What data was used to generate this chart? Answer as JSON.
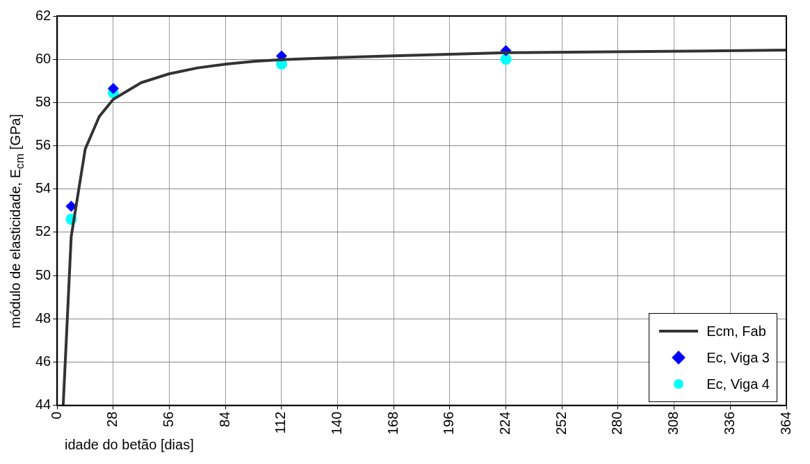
{
  "chart_data": {
    "type": "line",
    "xlabel": "idade do betão [dias]",
    "ylabel": "módulo de elasticidade, E$_{cm}$ [GPa]",
    "xlim": [
      0,
      364
    ],
    "xticks": [
      0,
      28,
      56,
      84,
      112,
      140,
      168,
      196,
      224,
      252,
      280,
      308,
      336,
      364
    ],
    "ylim": [
      44,
      62
    ],
    "yticks": [
      44,
      46,
      48,
      50,
      52,
      54,
      56,
      58,
      60,
      62
    ],
    "grid": true,
    "legend": "bottom right",
    "series": [
      {
        "name": "Ecm, Fab",
        "type": "line",
        "color": "#333333",
        "marker": "none",
        "x": [
          3,
          7,
          14,
          21,
          28,
          42,
          56,
          70,
          84,
          98,
          112,
          140,
          168,
          224,
          364
        ],
        "values": [
          44,
          51.8,
          55.85,
          57.35,
          58.15,
          58.92,
          59.33,
          59.6,
          59.77,
          59.9,
          59.98,
          60.08,
          60.16,
          60.3,
          60.42
        ]
      },
      {
        "name": "Ec, Viga 3",
        "type": "scatter",
        "color": "#0000ff",
        "marker": "diamond",
        "x": [
          7,
          28,
          112,
          224
        ],
        "values": [
          53.2,
          58.65,
          60.15,
          60.4
        ]
      },
      {
        "name": "Ec, Viga 4",
        "type": "scatter",
        "color": "#00ffff",
        "marker": "circle",
        "x": [
          7,
          28,
          112,
          224
        ],
        "values": [
          52.6,
          58.45,
          59.78,
          60.0
        ]
      }
    ]
  }
}
